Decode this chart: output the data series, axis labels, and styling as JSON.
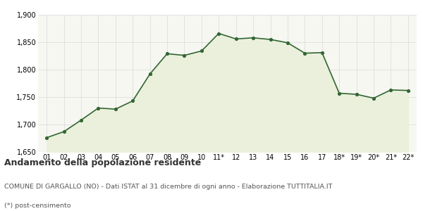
{
  "x_labels": [
    "01",
    "02",
    "03",
    "04",
    "05",
    "06",
    "07",
    "08",
    "09",
    "10",
    "11*",
    "12",
    "13",
    "14",
    "15",
    "16",
    "17",
    "18*",
    "19*",
    "20*",
    "21*",
    "22*"
  ],
  "values": [
    1676,
    1687,
    1708,
    1730,
    1728,
    1743,
    1792,
    1829,
    1826,
    1834,
    1866,
    1856,
    1858,
    1855,
    1849,
    1830,
    1831,
    1757,
    1755,
    1748,
    1763,
    1762
  ],
  "ylim": [
    1650,
    1900
  ],
  "yticks": [
    1650,
    1700,
    1750,
    1800,
    1850,
    1900
  ],
  "line_color": "#336633",
  "fill_color": "#eaf0dc",
  "marker_color": "#336633",
  "bg_color": "#f7f7f2",
  "grid_color": "#d8d8d8",
  "title": "Andamento della popolazione residente",
  "subtitle": "COMUNE DI GARGALLO (NO) - Dati ISTAT al 31 dicembre di ogni anno - Elaborazione TUTTITALIA.IT",
  "footnote": "(*) post-censimento",
  "title_fontsize": 9,
  "subtitle_fontsize": 6.8,
  "footnote_fontsize": 6.8,
  "tick_fontsize": 7,
  "ytick_fontsize": 7
}
